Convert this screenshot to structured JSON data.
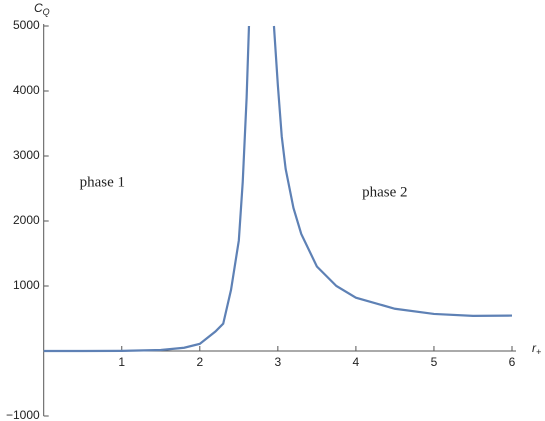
{
  "chart_data": {
    "type": "line",
    "x_label": {
      "base": "r",
      "sub": "+"
    },
    "y_label": {
      "base": "C",
      "sub": "Q"
    },
    "annotations": [
      {
        "text": "phase 1",
        "x": 0.46,
        "y": 2580
      },
      {
        "text": "phase 2",
        "x": 4.08,
        "y": 2430
      }
    ],
    "x": [
      0,
      0.5,
      1,
      1.5,
      1.8,
      2,
      2.2,
      2.3,
      2.4,
      2.5,
      2.55,
      2.6,
      2.63,
      2.8,
      2.95,
      3,
      3.05,
      3.1,
      3.2,
      3.3,
      3.5,
      3.75,
      4,
      4.5,
      5,
      5.5,
      6
    ],
    "series": [
      {
        "color": "#5e81b5",
        "values": [
          0,
          0,
          2,
          15,
          50,
          110,
          300,
          420,
          940,
          1700,
          2600,
          3900,
          5000,
          null,
          5000,
          4090,
          3300,
          2800,
          2200,
          1800,
          1300,
          1000,
          820,
          650,
          570,
          540,
          545
        ]
      }
    ],
    "xlim": [
      0,
      6
    ],
    "ylim": [
      -1000,
      5000
    ],
    "xticks": [
      1,
      2,
      3,
      4,
      5,
      6
    ],
    "yticks": [
      {
        "value": -1000,
        "label": "−1000"
      },
      1000,
      2000,
      3000,
      4000,
      5000
    ]
  }
}
